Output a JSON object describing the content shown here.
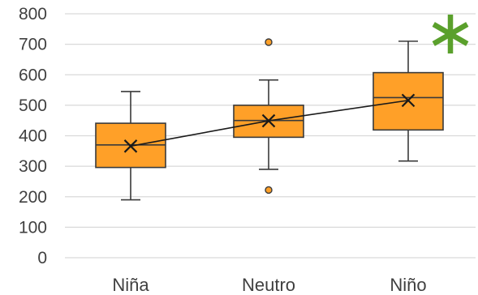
{
  "chart_data": {
    "type": "box",
    "categories": [
      "Niña",
      "Neutro",
      "Niño"
    ],
    "y_ticks": [
      "0",
      "100",
      "200",
      "300",
      "400",
      "500",
      "600",
      "700",
      "800"
    ],
    "ylim": [
      0,
      800
    ],
    "grid": true,
    "boxes": [
      {
        "category": "Niña",
        "min": 190,
        "q1": 296,
        "median": 370,
        "q3": 441,
        "max": 545,
        "mean": 366,
        "outliers": []
      },
      {
        "category": "Neutro",
        "min": 290,
        "q1": 395,
        "median": 450,
        "q3": 500,
        "max": 583,
        "mean": 449,
        "outliers": [
          222,
          707
        ]
      },
      {
        "category": "Niño",
        "min": 317,
        "q1": 419,
        "median": 525,
        "q3": 607,
        "max": 710,
        "mean": 516,
        "outliers": []
      }
    ],
    "mean_line": true,
    "annotation": {
      "symbol": "asterisk",
      "category": "Niño",
      "color": "#5aa02c"
    }
  },
  "colors": {
    "box_fill": "#ffa028",
    "outline": "#3a3a3a",
    "grid": "#d9d9d9",
    "text": "#404040",
    "significance": "#5aa02c"
  }
}
